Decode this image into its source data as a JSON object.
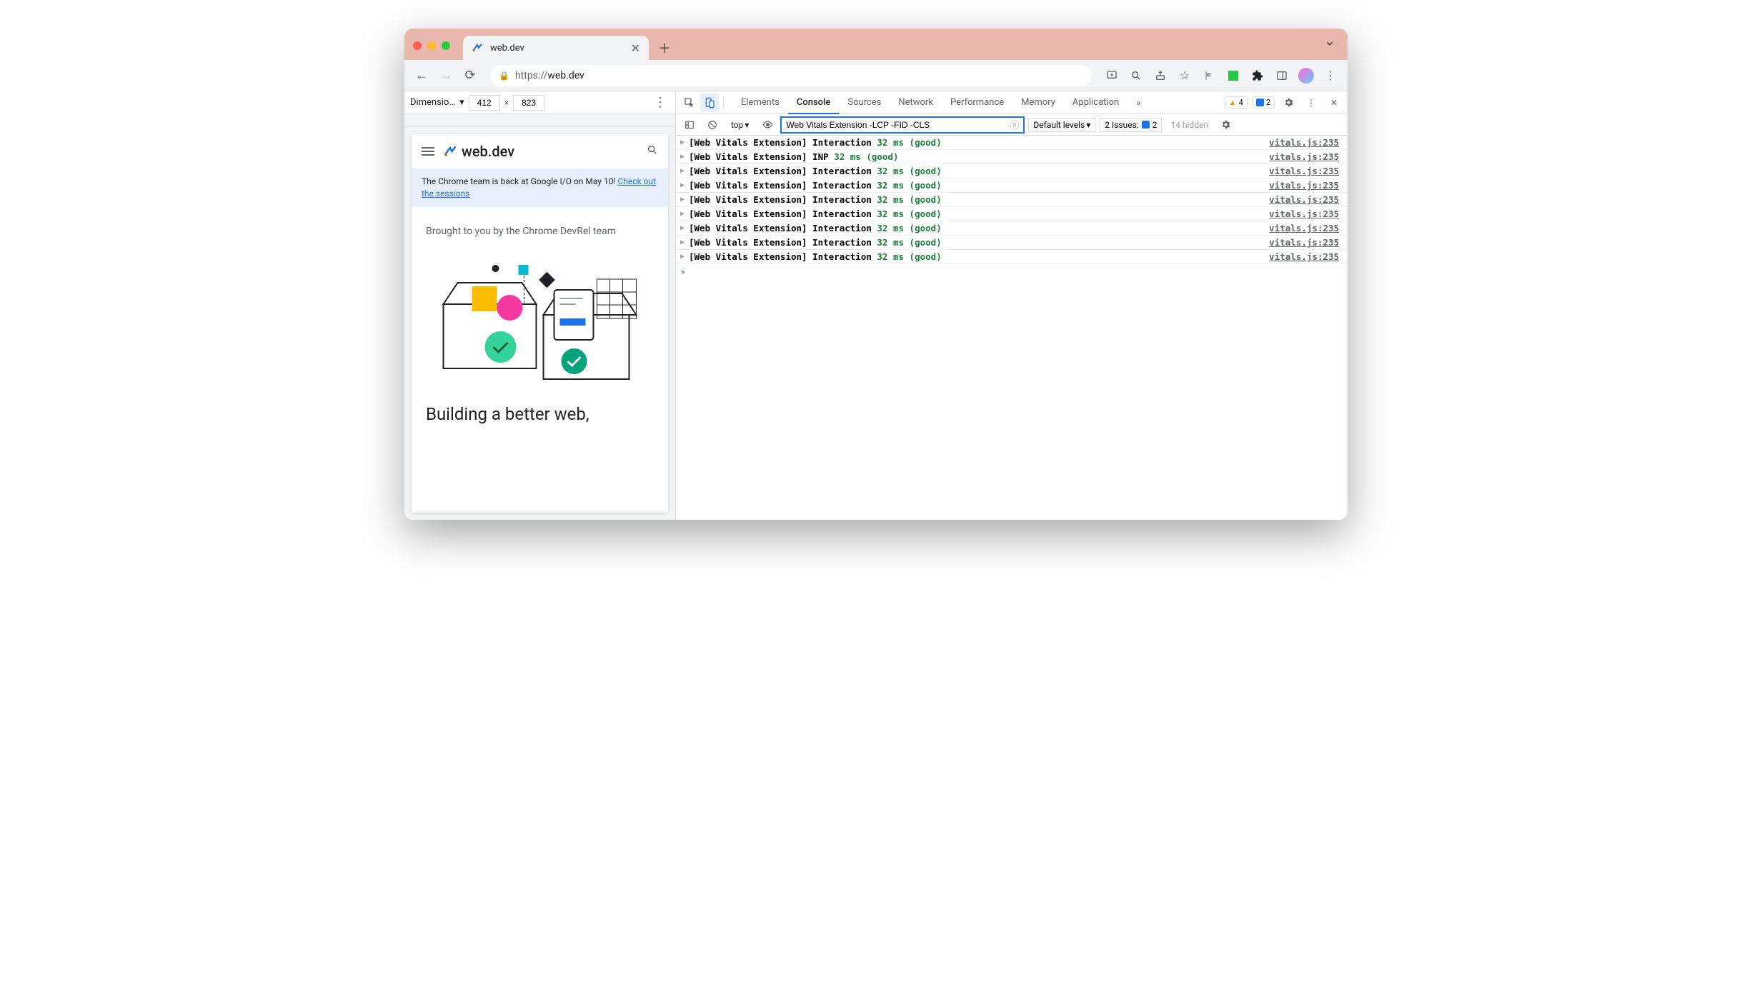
{
  "colors": {
    "titlebar_bg": "#e9b8ad",
    "chrome_toolbar_bg": "#f1f3f4",
    "border": "#dadce0",
    "accent_blue": "#1a73e8",
    "good_green": "#188038",
    "warn_orange": "#f29900",
    "banner_bg": "#e8f0fe"
  },
  "tab": {
    "title": "web.dev"
  },
  "omnibox": {
    "scheme": "https://",
    "host": "web.dev"
  },
  "device_toolbar": {
    "label": "Dimensio…",
    "width": "412",
    "height": "823"
  },
  "page": {
    "site_name": "web.dev",
    "banner_text": "The Chrome team is back at Google I/O on May 10! ",
    "banner_link_text": "Check out the sessions",
    "subhead": "Brought to you by the Chrome DevRel team",
    "hero_title": "Building a better web,"
  },
  "devtools": {
    "tabs": [
      "Elements",
      "Console",
      "Sources",
      "Network",
      "Performance",
      "Memory",
      "Application"
    ],
    "active_tab": "Console",
    "warnings_count": "4",
    "info_count": "2",
    "console_toolbar": {
      "context": "top",
      "filter": "Web Vitals Extension -LCP -FID -CLS",
      "levels": "Default levels",
      "issues_label": "2 Issues:",
      "issues_count": "2",
      "hidden": "14 hidden"
    },
    "logs": [
      {
        "prefix": "[Web Vitals Extension]",
        "metric": "Interaction",
        "value": "32 ms",
        "status": "(good)",
        "source": "vitals.js:235"
      },
      {
        "prefix": "[Web Vitals Extension]",
        "metric": "INP",
        "value": "32 ms",
        "status": "(good)",
        "source": "vitals.js:235"
      },
      {
        "prefix": "[Web Vitals Extension]",
        "metric": "Interaction",
        "value": "32 ms",
        "status": "(good)",
        "source": "vitals.js:235"
      },
      {
        "prefix": "[Web Vitals Extension]",
        "metric": "Interaction",
        "value": "32 ms",
        "status": "(good)",
        "source": "vitals.js:235"
      },
      {
        "prefix": "[Web Vitals Extension]",
        "metric": "Interaction",
        "value": "32 ms",
        "status": "(good)",
        "source": "vitals.js:235"
      },
      {
        "prefix": "[Web Vitals Extension]",
        "metric": "Interaction",
        "value": "32 ms",
        "status": "(good)",
        "source": "vitals.js:235"
      },
      {
        "prefix": "[Web Vitals Extension]",
        "metric": "Interaction",
        "value": "32 ms",
        "status": "(good)",
        "source": "vitals.js:235"
      },
      {
        "prefix": "[Web Vitals Extension]",
        "metric": "Interaction",
        "value": "32 ms",
        "status": "(good)",
        "source": "vitals.js:235"
      },
      {
        "prefix": "[Web Vitals Extension]",
        "metric": "Interaction",
        "value": "32 ms",
        "status": "(good)",
        "source": "vitals.js:235"
      }
    ]
  }
}
